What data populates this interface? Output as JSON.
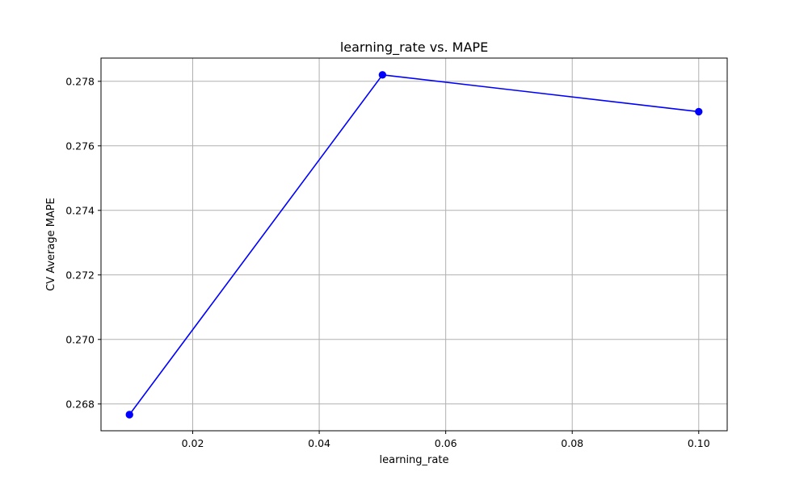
{
  "chart_data": {
    "type": "line",
    "title": "learning_rate vs. MAPE",
    "xlabel": "learning_rate",
    "ylabel": "CV Average MAPE",
    "x": [
      0.01,
      0.05,
      0.1
    ],
    "series": [
      {
        "values": [
          0.26767,
          0.2782,
          0.27706
        ],
        "color": "#0000ff",
        "marker": "circle"
      }
    ],
    "xlim": [
      0.0055,
      0.1045
    ],
    "ylim": [
      0.26717,
      0.27872
    ],
    "xticks": [
      {
        "value": 0.02,
        "label": "0.02"
      },
      {
        "value": 0.04,
        "label": "0.04"
      },
      {
        "value": 0.06,
        "label": "0.06"
      },
      {
        "value": 0.08,
        "label": "0.08"
      },
      {
        "value": 0.1,
        "label": "0.10"
      }
    ],
    "yticks": [
      {
        "value": 0.268,
        "label": "0.268"
      },
      {
        "value": 0.27,
        "label": "0.270"
      },
      {
        "value": 0.272,
        "label": "0.272"
      },
      {
        "value": 0.274,
        "label": "0.274"
      },
      {
        "value": 0.276,
        "label": "0.276"
      },
      {
        "value": 0.278,
        "label": "0.278"
      }
    ],
    "grid": true,
    "legend": "none"
  }
}
